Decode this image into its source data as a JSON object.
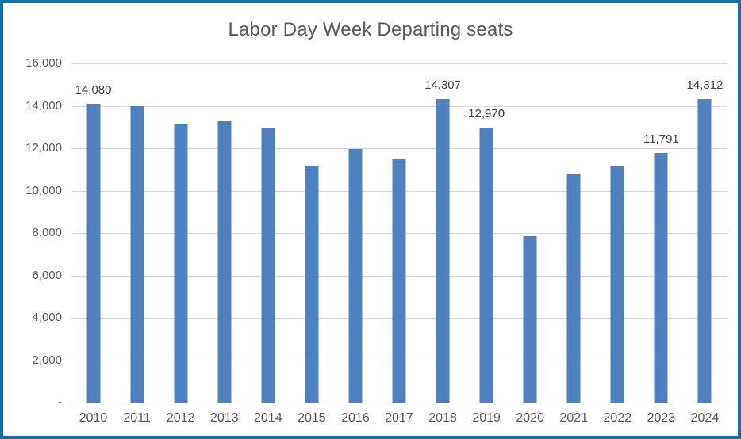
{
  "chart_data": {
    "type": "bar",
    "title": "Labor Day Week Departing seats",
    "xlabel": "",
    "ylabel": "",
    "categories": [
      "2010",
      "2011",
      "2012",
      "2013",
      "2014",
      "2015",
      "2016",
      "2017",
      "2018",
      "2019",
      "2020",
      "2021",
      "2022",
      "2023",
      "2024"
    ],
    "values": [
      14080,
      13980,
      13150,
      13260,
      12930,
      11180,
      11960,
      11470,
      14307,
      12970,
      7860,
      10750,
      11150,
      11791,
      14312
    ],
    "data_labels": [
      "14,080",
      null,
      null,
      null,
      null,
      null,
      null,
      null,
      "14,307",
      "12,970",
      null,
      null,
      null,
      "11,791",
      "14,312"
    ],
    "ylim": [
      0,
      16000
    ],
    "y_ticks": [
      {
        "value": 16000,
        "label": "16,000"
      },
      {
        "value": 14000,
        "label": "14,000"
      },
      {
        "value": 12000,
        "label": "12,000"
      },
      {
        "value": 10000,
        "label": "10,000"
      },
      {
        "value": 8000,
        "label": "8,000"
      },
      {
        "value": 6000,
        "label": "6,000"
      },
      {
        "value": 4000,
        "label": "4,000"
      },
      {
        "value": 2000,
        "label": "2,000"
      },
      {
        "value": 0,
        "label": "-"
      }
    ],
    "grid": true,
    "legend": false
  },
  "style": {
    "bar_color": "#4E81BD",
    "border_color": "#1172A8",
    "grid_color": "#D9D9D9",
    "axis_line_color": "#C9C9C9",
    "title_color": "#595959",
    "tick_color": "#595959",
    "datalabel_color": "#404040",
    "background": "#FFFFFF"
  }
}
